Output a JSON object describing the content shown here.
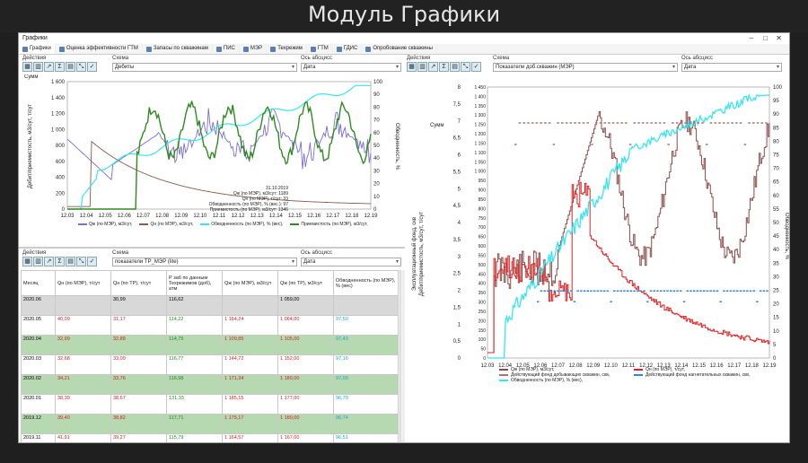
{
  "banner": "Модуль Графики",
  "window": {
    "title": "Графики"
  },
  "tabs": [
    "Графики",
    "Оценка эффективности ГТМ",
    "Запасы по скважинам",
    "ПИС",
    "МЭР",
    "Техрежим",
    "ГТМ",
    "ГДИС",
    "Опробование скважины"
  ],
  "left": {
    "labels": {
      "actions": "Действия",
      "scheme": "Схема",
      "xaxis": "Ось абсцисс"
    },
    "scheme_value": "Дебиты",
    "xaxis_value": "Дата",
    "sum": "Сумм",
    "ylabel_left": "Дебит/приемистость, м3/сут, т/сут",
    "ylabel_right": "Обводненность, %",
    "yticks_left": [
      "0",
      "200",
      "400",
      "600",
      "800",
      "1 000",
      "1 200",
      "1 400",
      "1 600"
    ],
    "yticks_right": [
      "0",
      "10",
      "20",
      "30",
      "40",
      "50",
      "60",
      "70",
      "80",
      "90",
      "100"
    ],
    "xticks": [
      "12.03",
      "12.04",
      "12.05",
      "12.06",
      "12.07",
      "12.08",
      "12.09",
      "12.10",
      "12.11",
      "12.12",
      "12.13",
      "12.14",
      "12.15",
      "12.16",
      "12.17",
      "12.18",
      "12.19"
    ],
    "annotation": [
      "31.10.2019",
      "Qж (по МЭР), м3/сут: 1189",
      "Qн (по МЭР), т/сут: 33",
      "Обводненность (по МЭР), % (вес.): 97",
      "Приемистость (по МЭР), м3/сут: 1346"
    ],
    "legend": [
      "Qж (по МЭР), м3/сут,",
      "Qн (по МЭР), м3/сут,",
      "Обводненность (по МЭР), % (вес),",
      "Приемистость (по МЭР), м3/сут,"
    ]
  },
  "bottom": {
    "labels": {
      "actions": "Действия",
      "scheme": "Схема",
      "xaxis": "Ось абсцисс"
    },
    "scheme_value": "показатели TP_MЭР (lite)",
    "xaxis_value": "Дата",
    "columns": [
      "Месяц",
      "Qн (по МЭР), т/сут",
      "Qн (по ТР), т/сут",
      "Р заб по данным Техрежимов (доб), атм",
      "Qж (по МЭР), м3/сут",
      "Qж (по ТР), м3/сут",
      "Обводненность (по МЭР), % (вес)"
    ],
    "rows": [
      [
        "2020.06",
        "",
        "30,99",
        "116,62",
        "",
        "1 059,00",
        ""
      ],
      [
        "2020.05",
        "40,09",
        "31,17",
        "114,22",
        "1 164,24",
        "1 064,00",
        "97,50"
      ],
      [
        "2020.04",
        "32,99",
        "32,88",
        "114,75",
        "1 109,85",
        "1 105,00",
        "97,43"
      ],
      [
        "2020.03",
        "32,68",
        "33,09",
        "116,77",
        "1 144,72",
        "1 152,00",
        "97,16"
      ],
      [
        "2020.02",
        "34,21",
        "33,76",
        "116,98",
        "1 171,34",
        "1 180,00",
        "97,09"
      ],
      [
        "2020.01",
        "38,30",
        "38,67",
        "131,33",
        "1 185,15",
        "1 177,00",
        "96,70"
      ],
      [
        "2019.12",
        "39,40",
        "38,82",
        "117,71",
        "1 175,17",
        "1 180,00",
        "96,74"
      ],
      [
        "2019.11",
        "41,91",
        "39,27",
        "115,79",
        "1 164,57",
        "1 167,00",
        "96,51"
      ]
    ]
  },
  "right": {
    "labels": {
      "actions": "Действия",
      "scheme": "Схема",
      "xaxis": "Ось абсцисс"
    },
    "scheme_value": "Показатели доб.скважин (МЭР)",
    "xaxis_value": "Дата",
    "sum": "Сумм",
    "ylabel_left": "Дебит/приемистость, м3/сут, т/сут",
    "ylabel_left2": "Эксплуатационный фонд, скв",
    "ylabel_right": "Обводненность, %",
    "yticks_outer": [
      "0",
      "0,5",
      "1",
      "1,5",
      "2",
      "2,5",
      "3",
      "3,5",
      "4",
      "4,5",
      "5",
      "5,5",
      "6",
      "6,5",
      "7",
      "7,5",
      "8"
    ],
    "yticks_inner": [
      "0",
      "50",
      "100",
      "150",
      "200",
      "250",
      "300",
      "350",
      "400",
      "450",
      "500",
      "550",
      "600",
      "650",
      "700",
      "750",
      "800",
      "850",
      "900",
      "950",
      "1 000",
      "1 050",
      "1 100",
      "1 150",
      "1 200",
      "1 250",
      "1 300",
      "1 350",
      "1 400",
      "1 450"
    ],
    "yticks_right": [
      "0",
      "5",
      "10",
      "15",
      "20",
      "25",
      "30",
      "35",
      "40",
      "45",
      "50",
      "55",
      "60",
      "65",
      "70",
      "75",
      "80",
      "85",
      "90",
      "95",
      "100"
    ],
    "xticks": [
      "12.03",
      "12.04",
      "12.05",
      "12.06",
      "12.07",
      "12.08",
      "12.09",
      "12.10",
      "12.11",
      "12.12",
      "12.13",
      "12.14",
      "12.15",
      "12.16",
      "12.17",
      "12.18",
      "12.19"
    ],
    "legend": [
      "Qж (по МЭР), м3/сут,",
      "Qн (по МЭР), т/сут,",
      "Действующий фонд добывающих скважин, скв,",
      "Действующий фонд нагнетательных скважин, скв,",
      "Обводненность (по МЭР), % (вес),"
    ]
  },
  "colors": {
    "qzh": "#7b6cd9",
    "qn": "#8b5a4a",
    "water": "#35e6f0",
    "inj": "#2e8b1f",
    "rq": "#8b4a4a",
    "rn": "#e02020",
    "rprod": "#b07070",
    "rinj": "#2f86e0",
    "rwater": "#35e6f0"
  }
}
